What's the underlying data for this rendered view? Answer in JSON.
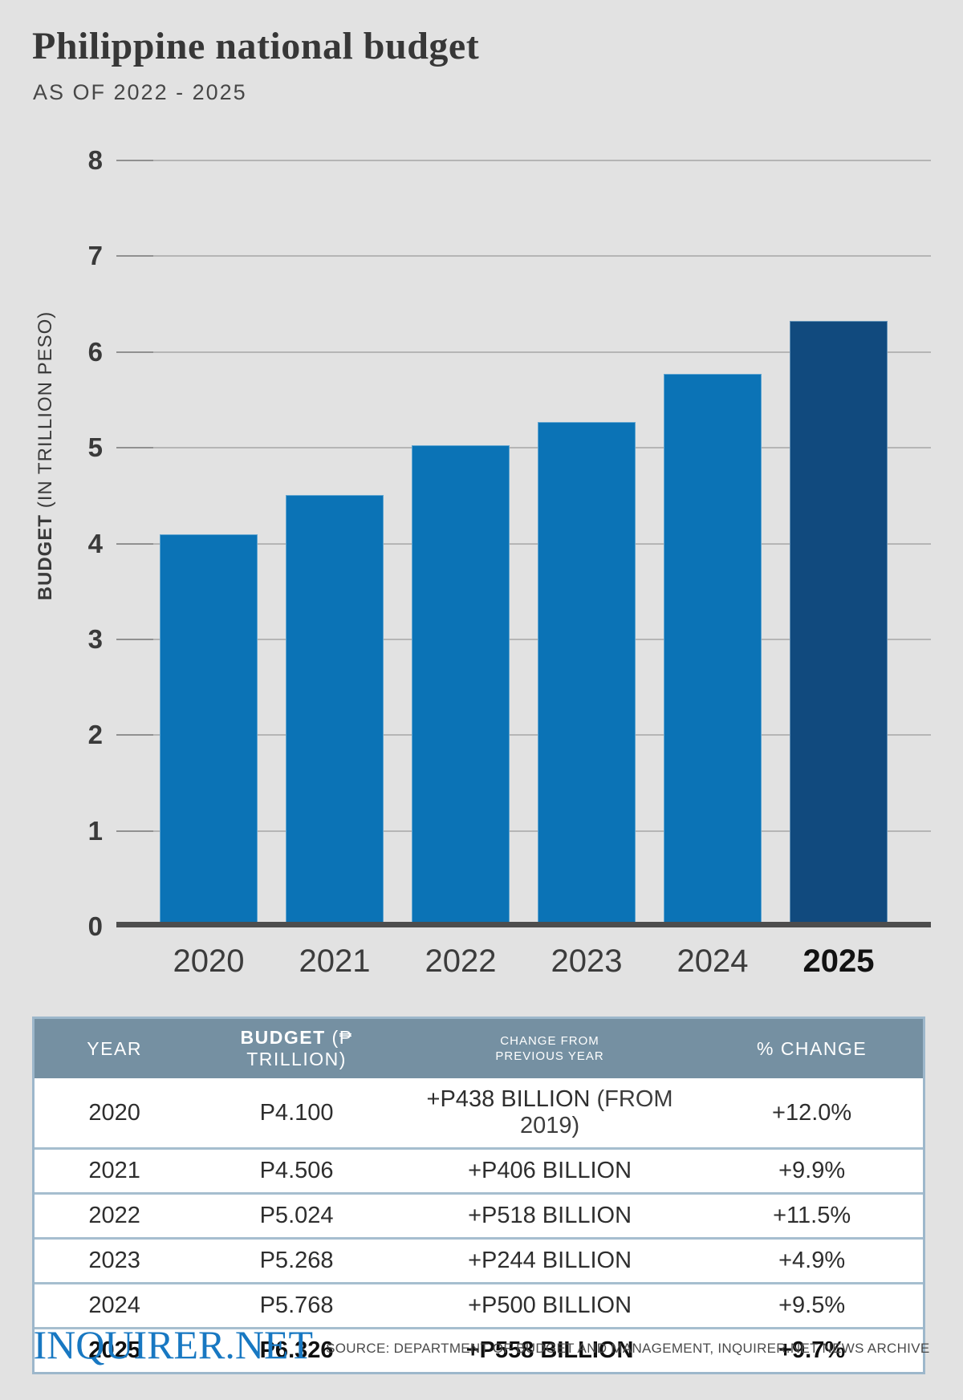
{
  "header": {
    "title": "Philippine national budget",
    "subtitle": "AS OF 2022 - 2025"
  },
  "chart_data": {
    "type": "bar",
    "categories": [
      "2020",
      "2021",
      "2022",
      "2023",
      "2024",
      "2025"
    ],
    "values": [
      4.1,
      4.506,
      5.024,
      5.268,
      5.768,
      6.326
    ],
    "title": "Philippine national budget",
    "xlabel": "",
    "ylabel": "BUDGET (IN TRILLION PESO)",
    "ylabel_bold": "BUDGET",
    "ylabel_rest": " (IN TRILLION PESO)",
    "yticks": [
      0,
      1,
      2,
      3,
      4,
      5,
      6,
      7,
      8
    ],
    "ylim": [
      0,
      8
    ],
    "grid": true,
    "legend": false,
    "bar_color": "#0b73b6",
    "highlight_color": "#114a7e",
    "highlight_index": 5,
    "axis_color": "#4d4d4d"
  },
  "table": {
    "col_year": "YEAR",
    "col_budget_bold": "BUDGET",
    "col_budget_rest": " (₱ TRILLION)",
    "col_change_line1": "CHANGE FROM",
    "col_change_line2": "PREVIOUS YEAR",
    "col_pct": "% CHANGE",
    "header_bg": "#7590a2",
    "rows": [
      {
        "year": "2020",
        "budget": "P4.100",
        "change": "+P438 BILLION",
        "change_note": " (FROM 2019)",
        "pct": "+12.0%",
        "bold": false
      },
      {
        "year": "2021",
        "budget": "P4.506",
        "change": "+P406 BILLION",
        "change_note": "",
        "pct": "+9.9%",
        "bold": false
      },
      {
        "year": "2022",
        "budget": "P5.024",
        "change": "+P518 BILLION",
        "change_note": "",
        "pct": "+11.5%",
        "bold": false
      },
      {
        "year": "2023",
        "budget": "P5.268",
        "change": "+P244 BILLION",
        "change_note": "",
        "pct": "+4.9%",
        "bold": false
      },
      {
        "year": "2024",
        "budget": "P5.768",
        "change": "+P500 BILLION",
        "change_note": "",
        "pct": "+9.5%",
        "bold": false
      },
      {
        "year": "2025",
        "budget": "P6.326",
        "change": "+P558 BILLION",
        "change_note": "",
        "pct": "+9.7%",
        "bold": true
      }
    ]
  },
  "footer": {
    "logo": "INQUIRER.NET",
    "source": "SOURCE: DEPARTMENT OF BUDGET AND MANAGEMENT, INQUIRER.NET NEWS ARCHIVE"
  }
}
